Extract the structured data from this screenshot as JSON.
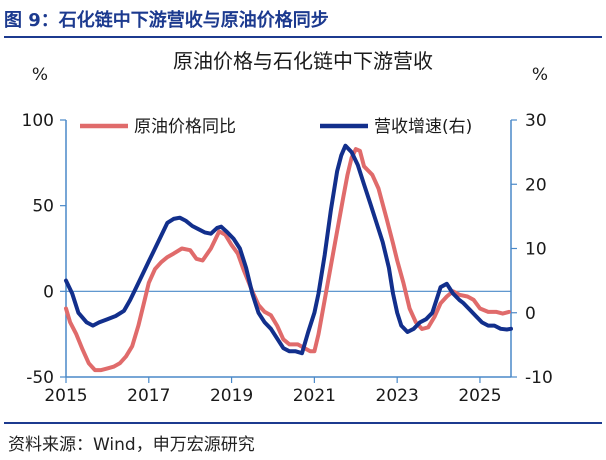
{
  "figure": {
    "title": "图 9：石化链中下游营收与原油价格同步",
    "source": "资料来源：Wind，申万宏源研究"
  },
  "colors": {
    "brand": "#1c3a8f",
    "oil_series": "#e06b6b",
    "revenue_series": "#122f8c",
    "axis": "#4a89c8"
  },
  "chart_data": {
    "type": "line",
    "title": "原油价格与石化链中下游营收",
    "left_axis": {
      "unit": "%",
      "ylim": [
        -50,
        100
      ],
      "ticks": [
        -50,
        0,
        50,
        100
      ]
    },
    "right_axis": {
      "unit": "%",
      "ylim": [
        -10,
        30
      ],
      "ticks": [
        -10,
        0,
        10,
        20,
        30
      ]
    },
    "x_axis": {
      "xlim": [
        2015.0,
        2025.75
      ],
      "ticks": [
        2015,
        2017,
        2019,
        2021,
        2023,
        2025
      ],
      "tick_labels": [
        "2015",
        "2017",
        "2019",
        "2021",
        "2023",
        "2025"
      ]
    },
    "grid": false,
    "legend_position": "top",
    "series": [
      {
        "name": "原油价格同比",
        "axis": "left",
        "color": "#e06b6b",
        "points": [
          [
            2015.0,
            -10
          ],
          [
            2015.1,
            -18
          ],
          [
            2015.25,
            -25
          ],
          [
            2015.4,
            -34
          ],
          [
            2015.55,
            -42
          ],
          [
            2015.7,
            -46
          ],
          [
            2015.85,
            -46
          ],
          [
            2016.0,
            -45
          ],
          [
            2016.15,
            -44
          ],
          [
            2016.3,
            -42
          ],
          [
            2016.45,
            -38
          ],
          [
            2016.6,
            -32
          ],
          [
            2016.75,
            -20
          ],
          [
            2016.9,
            -5
          ],
          [
            2017.0,
            5
          ],
          [
            2017.15,
            13
          ],
          [
            2017.3,
            17
          ],
          [
            2017.45,
            20
          ],
          [
            2017.6,
            22
          ],
          [
            2017.8,
            25
          ],
          [
            2018.0,
            24
          ],
          [
            2018.15,
            19
          ],
          [
            2018.3,
            18
          ],
          [
            2018.5,
            25
          ],
          [
            2018.7,
            35
          ],
          [
            2018.85,
            33
          ],
          [
            2019.0,
            27
          ],
          [
            2019.15,
            22
          ],
          [
            2019.3,
            12
          ],
          [
            2019.5,
            0
          ],
          [
            2019.65,
            -8
          ],
          [
            2019.8,
            -12
          ],
          [
            2019.95,
            -14
          ],
          [
            2020.1,
            -20
          ],
          [
            2020.25,
            -28
          ],
          [
            2020.4,
            -31
          ],
          [
            2020.6,
            -31
          ],
          [
            2020.75,
            -33
          ],
          [
            2020.9,
            -35
          ],
          [
            2021.0,
            -35
          ],
          [
            2021.1,
            -25
          ],
          [
            2021.25,
            -5
          ],
          [
            2021.4,
            15
          ],
          [
            2021.55,
            35
          ],
          [
            2021.7,
            55
          ],
          [
            2021.8,
            68
          ],
          [
            2021.9,
            78
          ],
          [
            2022.0,
            83
          ],
          [
            2022.1,
            82
          ],
          [
            2022.2,
            73
          ],
          [
            2022.4,
            68
          ],
          [
            2022.55,
            60
          ],
          [
            2022.75,
            42
          ],
          [
            2022.9,
            28
          ],
          [
            2023.0,
            18
          ],
          [
            2023.15,
            5
          ],
          [
            2023.3,
            -10
          ],
          [
            2023.45,
            -18
          ],
          [
            2023.6,
            -22
          ],
          [
            2023.75,
            -21
          ],
          [
            2023.9,
            -15
          ],
          [
            2024.05,
            -7
          ],
          [
            2024.2,
            -3
          ],
          [
            2024.35,
            0
          ],
          [
            2024.5,
            -2
          ],
          [
            2024.7,
            -3
          ],
          [
            2024.85,
            -5
          ],
          [
            2025.0,
            -10
          ],
          [
            2025.2,
            -12
          ],
          [
            2025.4,
            -12
          ],
          [
            2025.55,
            -13
          ],
          [
            2025.7,
            -12
          ]
        ]
      },
      {
        "name": "营收增速(右)",
        "axis": "right",
        "color": "#122f8c",
        "points": [
          [
            2015.0,
            5
          ],
          [
            2015.15,
            3
          ],
          [
            2015.3,
            0
          ],
          [
            2015.5,
            -1.5
          ],
          [
            2015.65,
            -2
          ],
          [
            2015.8,
            -1.5
          ],
          [
            2016.0,
            -1
          ],
          [
            2016.2,
            -0.5
          ],
          [
            2016.4,
            0.3
          ],
          [
            2016.55,
            2
          ],
          [
            2016.7,
            4
          ],
          [
            2016.85,
            6
          ],
          [
            2017.0,
            8
          ],
          [
            2017.15,
            10
          ],
          [
            2017.3,
            12
          ],
          [
            2017.45,
            14
          ],
          [
            2017.6,
            14.6
          ],
          [
            2017.75,
            14.8
          ],
          [
            2017.9,
            14.3
          ],
          [
            2018.05,
            13.5
          ],
          [
            2018.2,
            13
          ],
          [
            2018.35,
            12.5
          ],
          [
            2018.5,
            12.3
          ],
          [
            2018.65,
            13.2
          ],
          [
            2018.75,
            13.4
          ],
          [
            2018.9,
            12.5
          ],
          [
            2019.05,
            11.5
          ],
          [
            2019.2,
            10
          ],
          [
            2019.35,
            7
          ],
          [
            2019.5,
            3
          ],
          [
            2019.65,
            0
          ],
          [
            2019.8,
            -1.5
          ],
          [
            2019.95,
            -2.5
          ],
          [
            2020.1,
            -4
          ],
          [
            2020.25,
            -5.5
          ],
          [
            2020.4,
            -6
          ],
          [
            2020.55,
            -6
          ],
          [
            2020.7,
            -6.3
          ],
          [
            2020.85,
            -3
          ],
          [
            2021.0,
            0
          ],
          [
            2021.1,
            3
          ],
          [
            2021.25,
            9
          ],
          [
            2021.4,
            16
          ],
          [
            2021.55,
            22
          ],
          [
            2021.65,
            24.5
          ],
          [
            2021.75,
            26
          ],
          [
            2021.9,
            25
          ],
          [
            2022.05,
            23
          ],
          [
            2022.2,
            20
          ],
          [
            2022.35,
            17
          ],
          [
            2022.5,
            14
          ],
          [
            2022.65,
            11
          ],
          [
            2022.8,
            7
          ],
          [
            2022.9,
            3
          ],
          [
            2023.0,
            0
          ],
          [
            2023.1,
            -2
          ],
          [
            2023.25,
            -3
          ],
          [
            2023.4,
            -2.5
          ],
          [
            2023.55,
            -1.5
          ],
          [
            2023.7,
            -1
          ],
          [
            2023.85,
            0
          ],
          [
            2023.95,
            2
          ],
          [
            2024.05,
            4
          ],
          [
            2024.2,
            4.5
          ],
          [
            2024.35,
            3
          ],
          [
            2024.5,
            2
          ],
          [
            2024.6,
            1.5
          ],
          [
            2024.75,
            0.5
          ],
          [
            2024.9,
            -0.5
          ],
          [
            2025.05,
            -1.5
          ],
          [
            2025.2,
            -2
          ],
          [
            2025.35,
            -2
          ],
          [
            2025.5,
            -2.5
          ],
          [
            2025.65,
            -2.6
          ],
          [
            2025.75,
            -2.5
          ]
        ]
      }
    ]
  }
}
